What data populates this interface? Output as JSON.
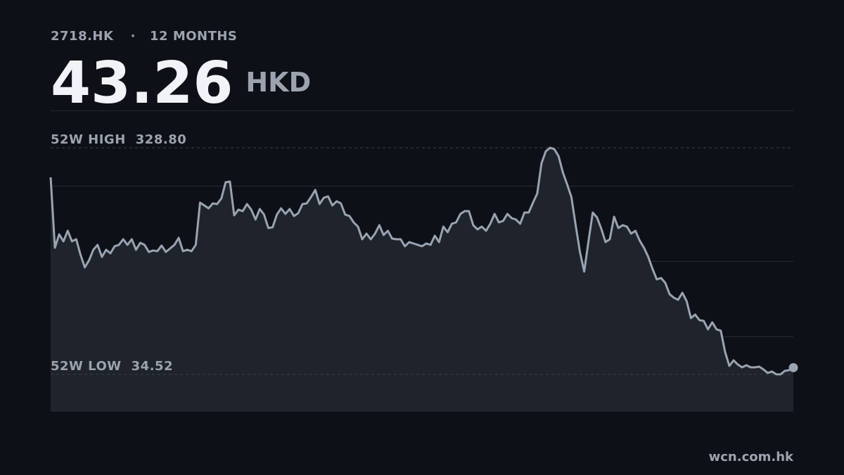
{
  "header": {
    "ticker": "2718.HK",
    "separator": "·",
    "period": "12 MONTHS",
    "price": 43.26,
    "currency": "HKD"
  },
  "chart_data": {
    "type": "area",
    "values": [
      290.4,
      199.0,
      216.4,
      207.3,
      221.0,
      207.3,
      210.0,
      189.9,
      173.4,
      182.6,
      196.3,
      202.7,
      187.1,
      196.3,
      191.7,
      200.9,
      202.7,
      210.0,
      202.7,
      210.0,
      196.3,
      205.4,
      202.7,
      193.5,
      195.4,
      194.5,
      201.8,
      193.5,
      198.1,
      202.7,
      211.8,
      194.5,
      196.3,
      194.5,
      202.7,
      257.5,
      253.9,
      250.2,
      256.6,
      255.7,
      263.0,
      284.0,
      284.9,
      241.1,
      248.4,
      246.5,
      255.7,
      248.4,
      235.6,
      249.3,
      242.0,
      224.6,
      225.5,
      242.0,
      250.2,
      242.9,
      249.3,
      240.2,
      243.8,
      255.7,
      256.6,
      264.8,
      274.0,
      255.7,
      263.9,
      265.7,
      253.9,
      259.3,
      256.6,
      242.0,
      240.2,
      231.9,
      226.4,
      210.0,
      217.3,
      210.0,
      217.3,
      228.3,
      215.5,
      221.0,
      210.9,
      210.0,
      210.0,
      200.9,
      206.3,
      204.5,
      202.7,
      200.9,
      204.5,
      202.7,
      214.6,
      206.3,
      226.4,
      219.1,
      230.1,
      231.9,
      242.9,
      246.5,
      246.5,
      228.3,
      222.8,
      226.4,
      221.0,
      230.1,
      242.9,
      231.9,
      233.8,
      242.9,
      237.4,
      235.6,
      230.1,
      244.7,
      244.7,
      257.5,
      269.4,
      308.7,
      324.2,
      328.8,
      327.0,
      317.8,
      296.8,
      281.3,
      264.8,
      228.3,
      193.5,
      168.0,
      207.3,
      244.7,
      238.3,
      223.7,
      206.3,
      210.0,
      239.2,
      224.6,
      228.3,
      226.4,
      217.3,
      221.0,
      208.2,
      199.0,
      187.1,
      171.6,
      157.9,
      159.7,
      153.3,
      138.7,
      134.1,
      131.4,
      140.5,
      129.6,
      107.6,
      112.2,
      104.9,
      104.0,
      93.0,
      102.2,
      93.0,
      91.2,
      63.8,
      45.5,
      52.8,
      47.3,
      43.7,
      46.4,
      43.7,
      43.7,
      44.6,
      40.9,
      36.4,
      38.2,
      34.6,
      34.52,
      39.1,
      40.0,
      43.26
    ],
    "color": "#9aa3b0",
    "fill": "#1f232b",
    "ylim": [
      -13.9,
      377.2
    ],
    "yticks": [
      83.9,
      181.7,
      279.4
    ],
    "grid": true,
    "annotations": [
      {
        "label": "52W HIGH",
        "value": 328.8,
        "value_label": "328.80"
      },
      {
        "label": "52W LOW",
        "value": 34.52,
        "value_label": "34.52"
      }
    ]
  },
  "footer": {
    "source": "wcn.com.hk"
  }
}
